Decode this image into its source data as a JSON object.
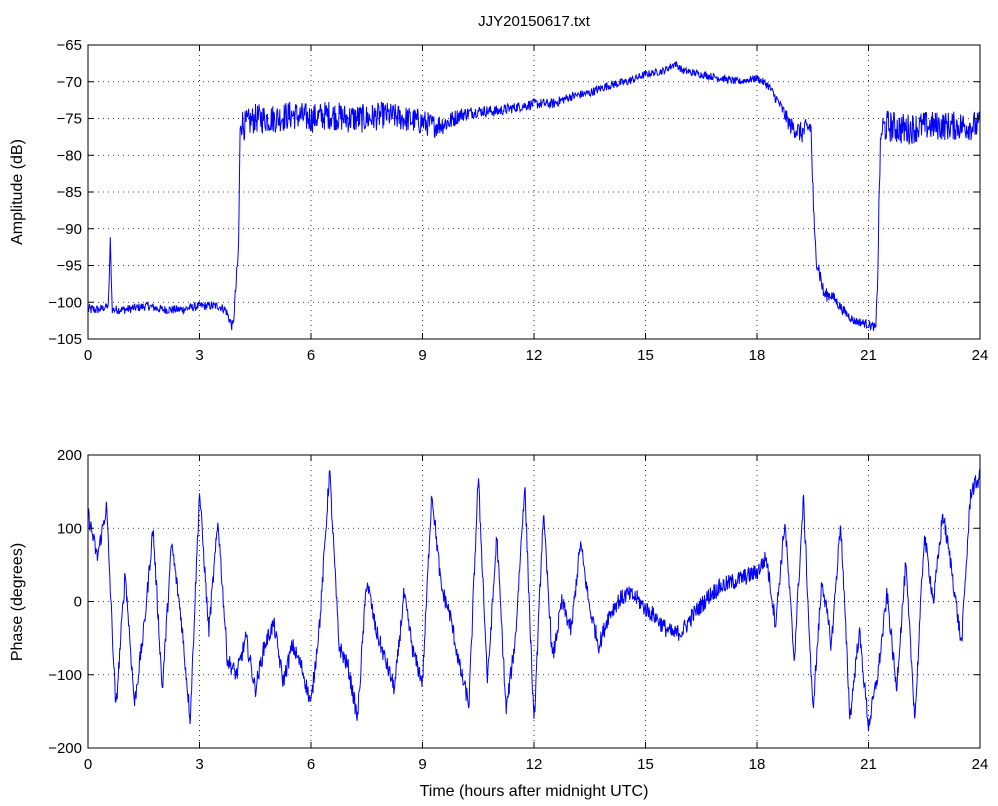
{
  "chart_data": [
    {
      "type": "line",
      "title": "JJY20150617.txt",
      "xlabel": "",
      "ylabel": "Amplitude (dB)",
      "xlim": [
        0,
        24
      ],
      "ylim": [
        -105,
        -65
      ],
      "x_ticks": [
        "0",
        "3",
        "6",
        "9",
        "12",
        "15",
        "18",
        "21",
        "24"
      ],
      "y_ticks": [
        "-105",
        "-100",
        "-95",
        "-90",
        "-85",
        "-80",
        "-75",
        "-70",
        "-65"
      ],
      "grid": true,
      "color": "#0000ff",
      "series": [
        {
          "x": [
            0,
            0.3,
            0.55,
            0.6,
            0.65,
            1.0,
            1.6,
            2.0,
            2.5,
            3.0,
            3.5,
            3.7,
            3.9,
            4.05,
            4.1,
            4.2,
            4.5,
            5.0,
            5.5,
            6.0,
            6.5,
            7.0,
            7.5,
            8.0,
            8.5,
            9.0,
            9.3,
            9.7,
            10.0,
            10.5,
            11.0,
            11.5,
            12.0,
            12.5,
            13.0,
            13.5,
            14.0,
            14.5,
            15.0,
            15.5,
            15.8,
            16.0,
            16.5,
            17.0,
            17.5,
            18.0,
            18.3,
            18.6,
            18.9,
            19.2,
            19.45,
            19.55,
            19.65,
            19.8,
            20.0,
            20.3,
            20.6,
            21.0,
            21.2,
            21.25,
            21.3,
            21.35,
            21.5,
            22.0,
            22.5,
            23.0,
            23.5,
            24.0
          ],
          "y": [
            -101,
            -101,
            -100.5,
            -91.5,
            -101,
            -101,
            -100.5,
            -101,
            -101,
            -100.5,
            -100.5,
            -101,
            -103.5,
            -93,
            -75,
            -76,
            -75,
            -75,
            -74.5,
            -75,
            -74.5,
            -75,
            -75,
            -74.5,
            -75,
            -75.5,
            -76,
            -75.5,
            -74.5,
            -74,
            -74,
            -73.5,
            -73,
            -73,
            -72,
            -71.5,
            -70.5,
            -70,
            -69,
            -68.5,
            -67.5,
            -68.5,
            -69,
            -69.5,
            -70,
            -69.5,
            -70.5,
            -73,
            -76,
            -77,
            -76,
            -92,
            -95,
            -99,
            -99,
            -101,
            -102.5,
            -103,
            -103.5,
            -96,
            -82,
            -76.5,
            -76,
            -76.5,
            -76,
            -76,
            -76,
            -76
          ],
          "noise": [
            0.8,
            0.6,
            0.5,
            0.5,
            0.6,
            0.6,
            0.6,
            0.6,
            0.6,
            0.6,
            0.6,
            0.6,
            0.8,
            1.5,
            2.2,
            2.0,
            2.0,
            2.0,
            2.0,
            2.0,
            2.0,
            2.0,
            2.0,
            1.8,
            1.8,
            1.8,
            1.6,
            1.4,
            1.0,
            0.8,
            0.8,
            0.7,
            0.7,
            0.7,
            0.6,
            0.6,
            0.6,
            0.6,
            0.5,
            0.5,
            0.5,
            0.5,
            0.5,
            0.5,
            0.5,
            0.5,
            0.6,
            0.8,
            1.2,
            1.5,
            1.5,
            2.0,
            1.5,
            1.0,
            0.8,
            0.7,
            0.6,
            0.6,
            0.6,
            1.5,
            2.0,
            2.2,
            2.2,
            2.2,
            2.0,
            2.0,
            2.0,
            2.0
          ]
        }
      ]
    },
    {
      "type": "line",
      "title": "",
      "xlabel": "Time (hours after midnight UTC)",
      "ylabel": "Phase (degrees)",
      "xlim": [
        0,
        24
      ],
      "ylim": [
        -200,
        200
      ],
      "x_ticks": [
        "0",
        "3",
        "6",
        "9",
        "12",
        "15",
        "18",
        "21",
        "24"
      ],
      "y_ticks": [
        "-200",
        "-100",
        "0",
        "100",
        "200"
      ],
      "grid": true,
      "color": "#0000ff",
      "series": [
        {
          "x": [
            0,
            0.25,
            0.5,
            0.75,
            1.0,
            1.25,
            1.5,
            1.75,
            2.0,
            2.25,
            2.5,
            2.75,
            3.0,
            3.25,
            3.5,
            3.75,
            4.0,
            4.25,
            4.5,
            4.75,
            5.0,
            5.25,
            5.5,
            5.75,
            6.0,
            6.25,
            6.5,
            6.75,
            7.0,
            7.25,
            7.5,
            7.75,
            8.0,
            8.25,
            8.5,
            8.75,
            9.0,
            9.25,
            9.5,
            9.75,
            10.0,
            10.25,
            10.5,
            10.75,
            11.0,
            11.25,
            11.5,
            11.75,
            12.0,
            12.25,
            12.5,
            12.75,
            13.0,
            13.25,
            13.5,
            13.75,
            14.0,
            14.25,
            14.5,
            14.75,
            15.0,
            15.25,
            15.5,
            15.75,
            16.0,
            16.25,
            16.5,
            16.75,
            17.0,
            17.25,
            17.5,
            17.75,
            18.0,
            18.25,
            18.5,
            18.75,
            19.0,
            19.25,
            19.5,
            19.75,
            20.0,
            20.25,
            20.5,
            20.75,
            21.0,
            21.25,
            21.5,
            21.75,
            22.0,
            22.25,
            22.5,
            22.75,
            23.0,
            23.25,
            23.5,
            23.75,
            24.0
          ],
          "y": [
            120,
            60,
            130,
            -150,
            40,
            -140,
            -40,
            100,
            -120,
            80,
            -20,
            -160,
            150,
            -40,
            110,
            -80,
            -100,
            -50,
            -120,
            -60,
            -30,
            -110,
            -60,
            -90,
            -140,
            -20,
            180,
            -60,
            -90,
            -160,
            30,
            -40,
            -80,
            -120,
            10,
            -70,
            -110,
            150,
            20,
            -20,
            -90,
            -140,
            170,
            -110,
            90,
            -150,
            -50,
            160,
            -170,
            120,
            -80,
            0,
            -40,
            80,
            -10,
            -60,
            -20,
            0,
            10,
            5,
            -10,
            -20,
            -35,
            -45,
            -40,
            -20,
            -5,
            10,
            20,
            25,
            30,
            35,
            40,
            60,
            -30,
            110,
            -80,
            140,
            -150,
            30,
            -60,
            110,
            -160,
            -40,
            -170,
            -100,
            10,
            -120,
            50,
            -160,
            90,
            0,
            120,
            40,
            -60,
            150,
            170
          ],
          "noise": 12
        }
      ]
    }
  ]
}
